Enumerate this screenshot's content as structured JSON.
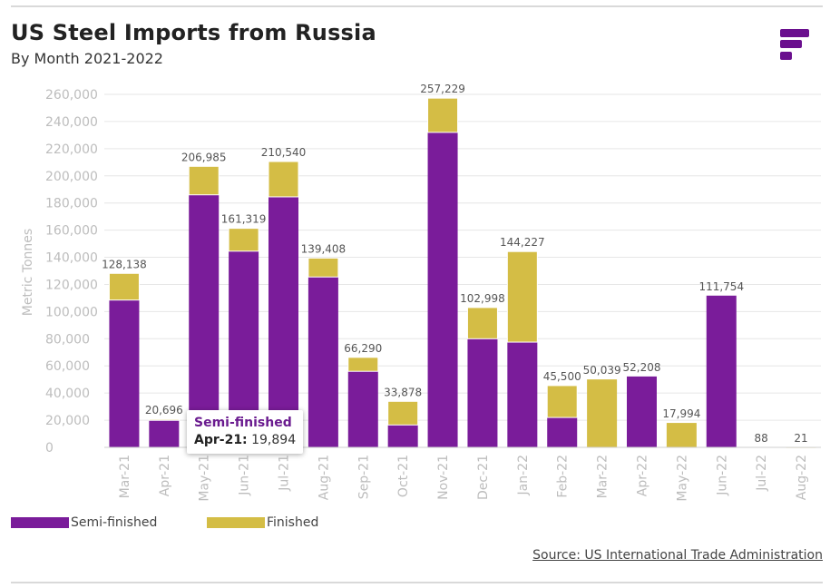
{
  "title": "US Steel Imports from Russia",
  "subtitle": "By Month 2021-2022",
  "source": "Source: US International Trade Administration",
  "logo": {
    "icon": "brand-logo-icon",
    "color": "#6a0f8e"
  },
  "legend": [
    {
      "label": "Semi-finished",
      "color": "#7a1c9a"
    },
    {
      "label": "Finished",
      "color": "#d4bd45"
    }
  ],
  "tooltip": {
    "series": "Semi-finished",
    "category": "Apr-21:",
    "value": "19,894"
  },
  "chart_data": {
    "type": "bar",
    "stacked": true,
    "ylabel": "Metric Tonnes",
    "ylim": [
      0,
      260000
    ],
    "yticks": [
      0,
      20000,
      40000,
      60000,
      80000,
      100000,
      120000,
      140000,
      160000,
      180000,
      200000,
      220000,
      240000,
      260000
    ],
    "ytick_labels": [
      "0",
      "20,000",
      "40,000",
      "60,000",
      "80,000",
      "100,000",
      "120,000",
      "140,000",
      "160,000",
      "180,000",
      "200,000",
      "220,000",
      "240,000",
      "260,000"
    ],
    "grid": true,
    "categories": [
      "Mar-21",
      "Apr-21",
      "May-21",
      "Jun-21",
      "Jul-21",
      "Aug-21",
      "Sep-21",
      "Oct-21",
      "Nov-21",
      "Dec-21",
      "Jan-22",
      "Feb-22",
      "Mar-22",
      "Apr-22",
      "May-22",
      "Jun-22",
      "Jul-22",
      "Aug-22"
    ],
    "series": [
      {
        "name": "Semi-finished",
        "color": "#7a1c9a",
        "values": [
          108500,
          19894,
          186000,
          144500,
          184500,
          125500,
          56000,
          16500,
          232000,
          80000,
          77500,
          22000,
          0,
          52208,
          0,
          111754,
          0,
          0
        ]
      },
      {
        "name": "Finished",
        "color": "#d4bd45",
        "values": [
          19638,
          802,
          20985,
          16819,
          26040,
          13908,
          10290,
          17378,
          25229,
          22998,
          66727,
          23500,
          50039,
          0,
          17994,
          0,
          88,
          21
        ]
      }
    ],
    "totals": [
      128138,
      20696,
      206985,
      161319,
      210540,
      139408,
      66290,
      33878,
      257229,
      102998,
      144227,
      45500,
      50039,
      52208,
      17994,
      111754,
      88,
      21
    ],
    "total_labels": [
      "128,138",
      "20,696",
      "206,985",
      "161,319",
      "210,540",
      "139,408",
      "66,290",
      "33,878",
      "257,229",
      "102,998",
      "144,227",
      "45,500",
      "50,039",
      "52,208",
      "17,994",
      "111,754",
      "88",
      "21"
    ]
  }
}
